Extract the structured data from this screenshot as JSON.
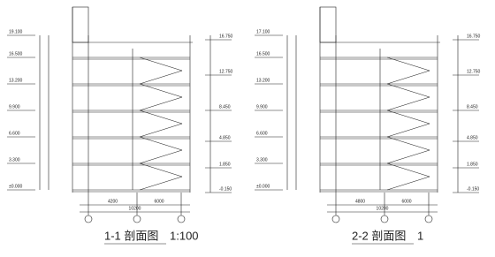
{
  "sections": [
    {
      "title": "1-1 剖面图",
      "scale": "1:100",
      "left_levels": [
        "±0.000",
        "3.300",
        "6.600",
        "9.900",
        "13.200",
        "16.500",
        "19.100"
      ],
      "right_levels": [
        "-0.150",
        "1.850",
        "4.850",
        "8.450",
        "12.750",
        "16.750"
      ],
      "dims": [
        "4200",
        "10200",
        "6000"
      ]
    },
    {
      "title": "2-2 剖面图",
      "scale": "1",
      "left_levels": [
        "±0.000",
        "3.300",
        "6.600",
        "9.900",
        "13.200",
        "16.500",
        "17.100"
      ],
      "right_levels": [
        "-0.150",
        "1.850",
        "4.850",
        "8.450",
        "12.750",
        "16.750"
      ],
      "dims": [
        "4800",
        "10200",
        "6000"
      ]
    }
  ]
}
